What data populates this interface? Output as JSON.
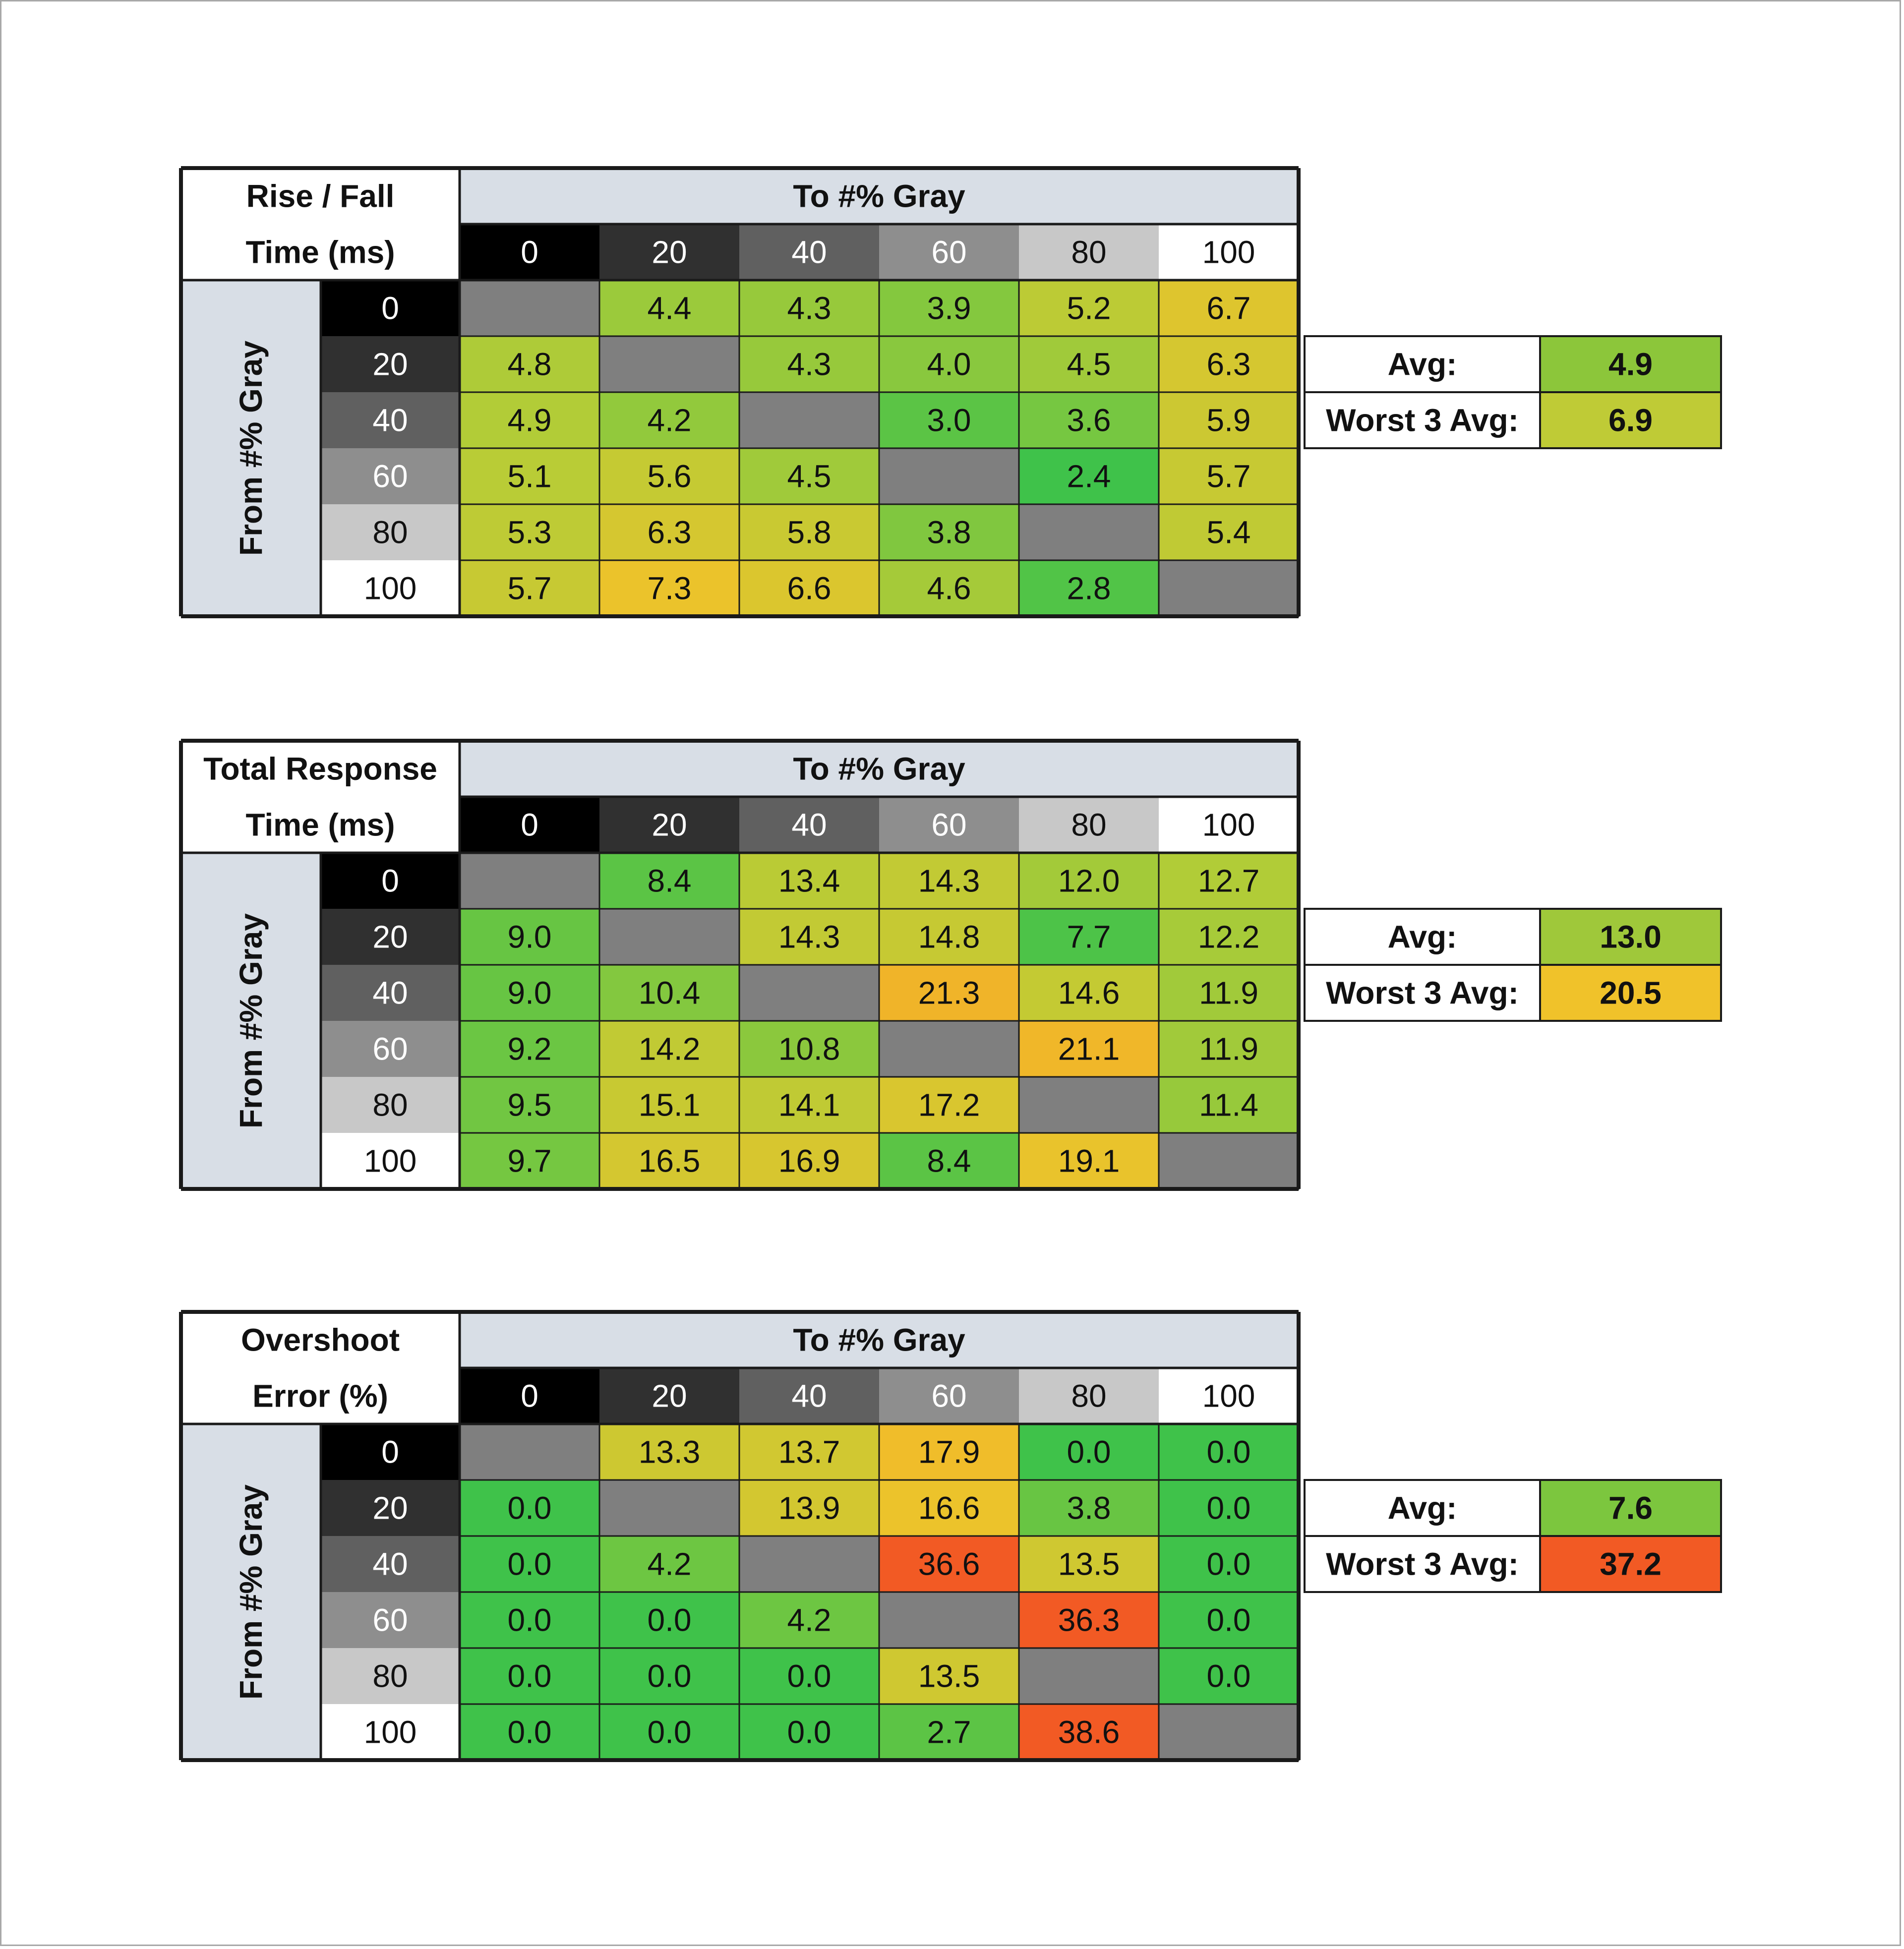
{
  "colors": {
    "header_bg": "#d8dee6",
    "gray_empty": "#7f7f7f",
    "gray_levels": [
      "#000000",
      "#303030",
      "#606060",
      "#8e8e8e",
      "#c8c8c8",
      "#ffffff"
    ],
    "good": "#3fc24a",
    "mid": "#b7cc36",
    "warn": "#f0c22a",
    "bad": "#f25a24"
  },
  "chart_data": [
    {
      "type": "heatmap",
      "title": "Rise / Fall Time (ms)",
      "title_lines": [
        "Rise / Fall",
        "Time (ms)"
      ],
      "xlabel": "To #% Gray",
      "ylabel": "From #% Gray",
      "x_categories": [
        "0",
        "20",
        "40",
        "60",
        "80",
        "100"
      ],
      "y_categories": [
        "0",
        "20",
        "40",
        "60",
        "80",
        "100"
      ],
      "values": [
        [
          null,
          4.4,
          4.3,
          3.9,
          5.2,
          6.7
        ],
        [
          4.8,
          null,
          4.3,
          4.0,
          4.5,
          6.3
        ],
        [
          4.9,
          4.2,
          null,
          3.0,
          3.6,
          5.9
        ],
        [
          5.1,
          5.6,
          4.5,
          null,
          2.4,
          5.7
        ],
        [
          5.3,
          6.3,
          5.8,
          3.8,
          null,
          5.4
        ],
        [
          5.7,
          7.3,
          6.6,
          4.6,
          2.8,
          null
        ]
      ],
      "color_scale": [
        2.4,
        5.0,
        7.5,
        10.0
      ],
      "summary": [
        {
          "label": "Avg:",
          "value": "4.9",
          "color": "#8cc63a"
        },
        {
          "label": "Worst 3 Avg:",
          "value": "6.9",
          "color": "#bfcb36"
        }
      ]
    },
    {
      "type": "heatmap",
      "title": "Total Response Time (ms)",
      "title_lines": [
        "Total Response",
        "Time (ms)"
      ],
      "xlabel": "To #% Gray",
      "ylabel": "From #% Gray",
      "x_categories": [
        "0",
        "20",
        "40",
        "60",
        "80",
        "100"
      ],
      "y_categories": [
        "0",
        "20",
        "40",
        "60",
        "80",
        "100"
      ],
      "values": [
        [
          null,
          8.4,
          13.4,
          14.3,
          12.0,
          12.7
        ],
        [
          9.0,
          null,
          14.3,
          14.8,
          7.7,
          12.2
        ],
        [
          9.0,
          10.4,
          null,
          21.3,
          14.6,
          11.9
        ],
        [
          9.2,
          14.2,
          10.8,
          null,
          21.1,
          11.9
        ],
        [
          9.5,
          15.1,
          14.1,
          17.2,
          null,
          11.4
        ],
        [
          9.7,
          16.5,
          16.9,
          8.4,
          19.1,
          null
        ]
      ],
      "color_scale": [
        7.0,
        13.0,
        20.0,
        30.0
      ],
      "summary": [
        {
          "label": "Avg:",
          "value": "13.0",
          "color": "#9fc83a"
        },
        {
          "label": "Worst 3 Avg:",
          "value": "20.5",
          "color": "#f0c22a"
        }
      ]
    },
    {
      "type": "heatmap",
      "title": "Overshoot Error (%)",
      "title_lines": [
        "Overshoot",
        "Error (%)"
      ],
      "xlabel": "To #% Gray",
      "ylabel": "From #% Gray",
      "x_categories": [
        "0",
        "20",
        "40",
        "60",
        "80",
        "100"
      ],
      "y_categories": [
        "0",
        "20",
        "40",
        "60",
        "80",
        "100"
      ],
      "values": [
        [
          null,
          13.3,
          13.7,
          17.9,
          0.0,
          0.0
        ],
        [
          0.0,
          null,
          13.9,
          16.6,
          3.8,
          0.0
        ],
        [
          0.0,
          4.2,
          null,
          36.6,
          13.5,
          0.0
        ],
        [
          0.0,
          0.0,
          4.2,
          null,
          36.3,
          0.0
        ],
        [
          0.0,
          0.0,
          0.0,
          13.5,
          null,
          0.0
        ],
        [
          0.0,
          0.0,
          0.0,
          2.7,
          38.6,
          null
        ]
      ],
      "color_scale": [
        0.0,
        11.0,
        17.0,
        35.0
      ],
      "summary": [
        {
          "label": "Avg:",
          "value": "7.6",
          "color": "#7cc63e"
        },
        {
          "label": "Worst 3 Avg:",
          "value": "37.2",
          "color": "#f25a24"
        }
      ]
    }
  ]
}
